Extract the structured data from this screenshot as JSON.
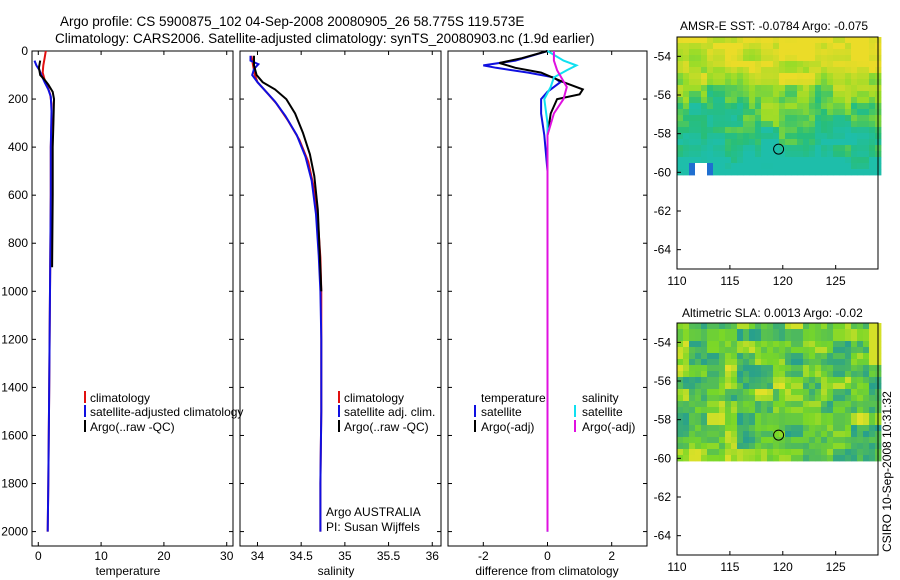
{
  "header": {
    "line1": "Argo profile: CS 5900875_102 04-Sep-2008 20080905_26 58.775S 119.573E",
    "line2": "Climatology: CARS2006. Satellite-adjusted climatology: synTS_20080903.nc (1.9d earlier)"
  },
  "colors": {
    "red": "#e01010",
    "blue": "#1010e0",
    "black": "#000000",
    "cyan": "#10e0f0",
    "magenta": "#e010e0"
  },
  "chart_data": [
    {
      "type": "line",
      "id": "temperature",
      "xlabel": "temperature",
      "xlim": [
        -1,
        31
      ],
      "ylim": [
        2060,
        0
      ],
      "xticks": [
        0,
        10,
        20,
        30
      ],
      "yticks": [
        0,
        200,
        400,
        600,
        800,
        1000,
        1200,
        1400,
        1600,
        1800,
        2000
      ],
      "series": [
        {
          "name": "climatology",
          "color": "red",
          "points": [
            [
              1.2,
              0
            ],
            [
              1.0,
              30
            ],
            [
              0.8,
              60
            ],
            [
              0.7,
              90
            ],
            [
              1.0,
              120
            ],
            [
              1.5,
              150
            ],
            [
              1.9,
              180
            ],
            [
              2.1,
              220
            ],
            [
              2.1,
              300
            ],
            [
              2.0,
              400
            ],
            [
              2.0,
              600
            ],
            [
              1.9,
              900
            ],
            [
              1.8,
              1200
            ],
            [
              1.7,
              1500
            ],
            [
              1.6,
              1800
            ],
            [
              1.5,
              2000
            ]
          ]
        },
        {
          "name": "satellite-adjusted climatology",
          "color": "blue",
          "points": [
            [
              -0.6,
              40
            ],
            [
              -0.3,
              60
            ],
            [
              0.2,
              80
            ],
            [
              0.5,
              100
            ],
            [
              1.0,
              130
            ],
            [
              1.6,
              160
            ],
            [
              2.0,
              190
            ],
            [
              2.1,
              250
            ],
            [
              2.0,
              400
            ],
            [
              2.0,
              600
            ],
            [
              1.9,
              900
            ],
            [
              1.8,
              1200
            ],
            [
              1.7,
              1500
            ],
            [
              1.6,
              1800
            ],
            [
              1.5,
              2000
            ]
          ]
        },
        {
          "name": "Argo(..raw -QC)",
          "color": "black",
          "points": [
            [
              0.3,
              40
            ],
            [
              0.1,
              70
            ],
            [
              0.3,
              100
            ],
            [
              1.0,
              120
            ],
            [
              1.6,
              140
            ],
            [
              2.3,
              170
            ],
            [
              2.5,
              200
            ],
            [
              2.4,
              300
            ],
            [
              2.3,
              400
            ],
            [
              2.3,
              600
            ],
            [
              2.2,
              900
            ]
          ]
        }
      ],
      "legend": {
        "position": "lower-right",
        "entries": [
          "climatology",
          "satellite-adjusted climatology",
          "Argo(..raw -QC)"
        ]
      }
    },
    {
      "type": "line",
      "id": "salinity",
      "xlabel": "salinity",
      "xlim": [
        33.8,
        36.1
      ],
      "ylim": [
        2060,
        0
      ],
      "xticks": [
        34,
        34.5,
        35,
        35.5,
        36
      ],
      "yticks": [
        0,
        200,
        400,
        600,
        800,
        1000,
        1200,
        1400,
        1600,
        1800,
        2000
      ],
      "series": [
        {
          "name": "climatology",
          "color": "red",
          "points": [
            [
              33.93,
              20
            ],
            [
              33.95,
              60
            ],
            [
              33.97,
              100
            ],
            [
              34.0,
              130
            ],
            [
              34.1,
              170
            ],
            [
              34.22,
              220
            ],
            [
              34.35,
              290
            ],
            [
              34.48,
              370
            ],
            [
              34.58,
              460
            ],
            [
              34.64,
              560
            ],
            [
              34.69,
              700
            ],
            [
              34.72,
              860
            ],
            [
              34.73,
              1000
            ],
            [
              34.73,
              1200
            ],
            [
              34.73,
              1500
            ],
            [
              34.72,
              1800
            ],
            [
              34.72,
              2000
            ]
          ]
        },
        {
          "name": "satellite adj. clim.",
          "color": "blue",
          "points": [
            [
              33.92,
              20
            ],
            [
              33.92,
              40
            ],
            [
              34.01,
              55
            ],
            [
              33.96,
              75
            ],
            [
              33.94,
              100
            ],
            [
              34.0,
              130
            ],
            [
              34.1,
              170
            ],
            [
              34.2,
              210
            ],
            [
              34.32,
              270
            ],
            [
              34.45,
              350
            ],
            [
              34.55,
              440
            ],
            [
              34.62,
              540
            ],
            [
              34.67,
              680
            ],
            [
              34.7,
              850
            ],
            [
              34.72,
              1000
            ],
            [
              34.73,
              1200
            ],
            [
              34.73,
              1500
            ],
            [
              34.72,
              1800
            ],
            [
              34.72,
              2000
            ]
          ]
        },
        {
          "name": "Argo(..raw -QC)",
          "color": "black",
          "points": [
            [
              33.96,
              20
            ],
            [
              33.96,
              60
            ],
            [
              33.99,
              100
            ],
            [
              34.06,
              130
            ],
            [
              34.2,
              160
            ],
            [
              34.33,
              200
            ],
            [
              34.43,
              260
            ],
            [
              34.52,
              340
            ],
            [
              34.6,
              430
            ],
            [
              34.65,
              520
            ],
            [
              34.69,
              660
            ],
            [
              34.71,
              820
            ],
            [
              34.73,
              1000
            ]
          ]
        }
      ],
      "legend": {
        "position": "lower-right",
        "entries": [
          "climatology",
          "satellite adj. clim.",
          "Argo(..raw -QC)"
        ]
      },
      "annotation": [
        "Argo AUSTRALIA",
        "PI: Susan Wijffels"
      ]
    },
    {
      "type": "line",
      "id": "difference",
      "xlabel": "difference from climatology",
      "xlim": [
        -3.1,
        3.1
      ],
      "ylim": [
        2060,
        0
      ],
      "xticks": [
        -2,
        0,
        2
      ],
      "yticks": [
        0,
        200,
        400,
        600,
        800,
        1000,
        1200,
        1400,
        1600,
        1800,
        2000
      ],
      "series": [
        {
          "name": "temperature satellite",
          "color": "blue",
          "points": [
            [
              0,
              0
            ],
            [
              -1.0,
              40
            ],
            [
              -2.0,
              60
            ],
            [
              -1.6,
              70
            ],
            [
              -0.6,
              90
            ],
            [
              0.2,
              110
            ],
            [
              0.4,
              130
            ],
            [
              0,
              170
            ],
            [
              -0.2,
              200
            ],
            [
              -0.2,
              260
            ],
            [
              -0.1,
              350
            ],
            [
              0,
              500
            ],
            [
              0,
              2000
            ]
          ]
        },
        {
          "name": "temperature Argo(-adj)",
          "color": "black",
          "points": [
            [
              0,
              0
            ],
            [
              -0.8,
              30
            ],
            [
              -1.5,
              50
            ],
            [
              -1.0,
              70
            ],
            [
              -0.2,
              90
            ],
            [
              0.5,
              130
            ],
            [
              1.1,
              160
            ],
            [
              1.0,
              180
            ],
            [
              0.3,
              200
            ],
            [
              0.1,
              260
            ],
            [
              0,
              350
            ]
          ]
        },
        {
          "name": "salinity satellite",
          "color": "cyan",
          "points": [
            [
              0,
              0
            ],
            [
              0.5,
              40
            ],
            [
              0.9,
              60
            ],
            [
              0.6,
              80
            ],
            [
              0.2,
              110
            ],
            [
              0.1,
              150
            ],
            [
              -0.1,
              200
            ],
            [
              0,
              300
            ],
            [
              0,
              2000
            ]
          ]
        },
        {
          "name": "salinity Argo(-adj)",
          "color": "magenta",
          "points": [
            [
              0.2,
              0
            ],
            [
              0.2,
              40
            ],
            [
              0.3,
              80
            ],
            [
              0.6,
              150
            ],
            [
              0.5,
              200
            ],
            [
              0.2,
              260
            ],
            [
              0,
              350
            ],
            [
              0,
              2000
            ]
          ]
        }
      ],
      "legend": {
        "position": "lower-right",
        "groups": [
          "temperature",
          "salinity"
        ],
        "entries": [
          "satellite",
          "Argo(-adj)",
          "satellite",
          "Argo(-adj)"
        ]
      }
    },
    {
      "type": "heatmap",
      "id": "sst",
      "title": "AMSR-E SST: -0.0784 Argo: -0.075",
      "xlim": [
        110,
        129
      ],
      "ylim": [
        -65,
        -53
      ],
      "xticks": [
        110,
        115,
        120,
        125
      ],
      "yticks": [
        -54,
        -56,
        -58,
        -60,
        -62,
        -64
      ],
      "marker": {
        "lon": 119.6,
        "lat": -58.8
      }
    },
    {
      "type": "heatmap",
      "id": "sla",
      "title": "Altimetric SLA: 0.0013 Argo: -0.02",
      "xlim": [
        110,
        129
      ],
      "ylim": [
        -65,
        -53
      ],
      "xticks": [
        110,
        115,
        120,
        125
      ],
      "yticks": [
        -54,
        -56,
        -58,
        -60,
        -62,
        -64
      ],
      "marker": {
        "lon": 119.6,
        "lat": -58.8
      }
    }
  ],
  "side_caption": "CSIRO 10-Sep-2008 10:31:32",
  "legend_text": {
    "temp": [
      "climatology",
      "satellite-adjusted climatology",
      "Argo(..raw -QC)"
    ],
    "sal": [
      "climatology",
      "satellite adj. clim.",
      "Argo(..raw -QC)"
    ],
    "diff_head_t": "temperature",
    "diff_head_s": "salinity",
    "diff_t": [
      "satellite",
      "Argo(-adj)"
    ],
    "diff_s": [
      "satellite",
      "Argo(-adj)"
    ]
  }
}
